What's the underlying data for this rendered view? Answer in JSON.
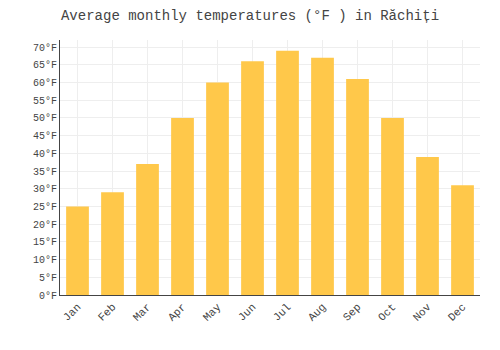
{
  "chart_data": {
    "type": "bar",
    "title": "Average monthly temperatures (°F ) in Răchiți",
    "categories": [
      "Jan",
      "Feb",
      "Mar",
      "Apr",
      "May",
      "Jun",
      "Jul",
      "Aug",
      "Sep",
      "Oct",
      "Nov",
      "Dec"
    ],
    "values": [
      25,
      29,
      37,
      50,
      60,
      66,
      69,
      67,
      61,
      50,
      39,
      31
    ],
    "color": "#FFC84A",
    "ylim": [
      0,
      72
    ],
    "yticks": [
      {
        "value": 0,
        "label": "0°F"
      },
      {
        "value": 5,
        "label": "5°F"
      },
      {
        "value": 10,
        "label": "10°F"
      },
      {
        "value": 15,
        "label": "15°F"
      },
      {
        "value": 20,
        "label": "20°F"
      },
      {
        "value": 25,
        "label": "25°F"
      },
      {
        "value": 30,
        "label": "30°F"
      },
      {
        "value": 35,
        "label": "35°F"
      },
      {
        "value": 40,
        "label": "40°F"
      },
      {
        "value": 45,
        "label": "45°F"
      },
      {
        "value": 50,
        "label": "50°F"
      },
      {
        "value": 55,
        "label": "55°F"
      },
      {
        "value": 60,
        "label": "60°F"
      },
      {
        "value": 65,
        "label": "65°F"
      },
      {
        "value": 70,
        "label": "70°F"
      }
    ],
    "grid": true
  }
}
